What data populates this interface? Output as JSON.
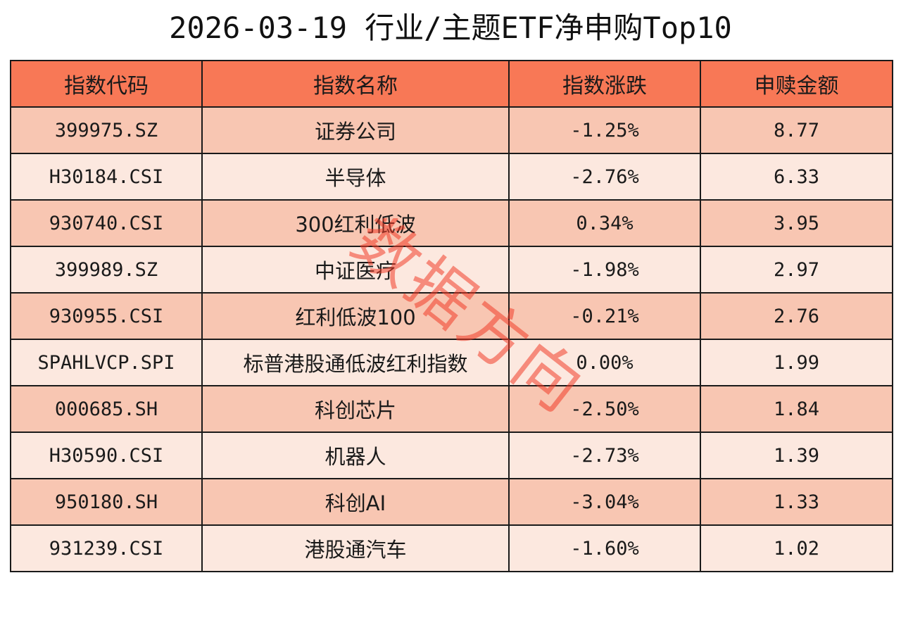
{
  "title": "2026-03-19 行业/主题ETF净申购Top10",
  "table": {
    "headers": [
      "指数代码",
      "指数名称",
      "指数涨跌",
      "申赎金额"
    ],
    "rows": [
      {
        "code": "399975.SZ",
        "name": "证券公司",
        "change": "-1.25%",
        "amount": "8.77"
      },
      {
        "code": "H30184.CSI",
        "name": "半导体",
        "change": "-2.76%",
        "amount": "6.33"
      },
      {
        "code": "930740.CSI",
        "name": "300红利低波",
        "change": "0.34%",
        "amount": "3.95"
      },
      {
        "code": "399989.SZ",
        "name": "中证医疗",
        "change": "-1.98%",
        "amount": "2.97"
      },
      {
        "code": "930955.CSI",
        "name": "红利低波100",
        "change": "-0.21%",
        "amount": "2.76"
      },
      {
        "code": "SPAHLVCP.SPI",
        "name": "标普港股通低波红利指数",
        "change": "0.00%",
        "amount": "1.99"
      },
      {
        "code": "000685.SH",
        "name": "科创芯片",
        "change": "-2.50%",
        "amount": "1.84"
      },
      {
        "code": "H30590.CSI",
        "name": "机器人",
        "change": "-2.73%",
        "amount": "1.39"
      },
      {
        "code": "950180.SH",
        "name": "科创AI",
        "change": "-3.04%",
        "amount": "1.33"
      },
      {
        "code": "931239.CSI",
        "name": "港股通汽车",
        "change": "-1.60%",
        "amount": "1.02"
      }
    ]
  },
  "watermark": {
    "text": "数据方向",
    "color": "#f03c28"
  },
  "colors": {
    "header_bg": "#f87856",
    "row_odd_bg": "#f8c6b2",
    "row_even_bg": "#fce8df",
    "border": "#1a1a1a"
  }
}
